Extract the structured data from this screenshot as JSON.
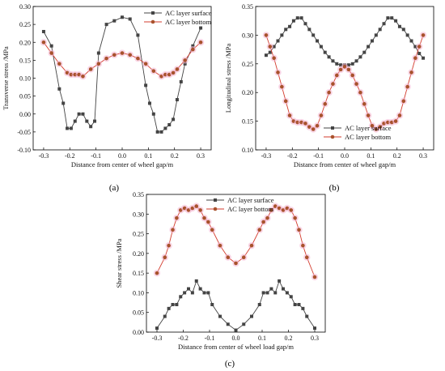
{
  "chart_data": [
    {
      "type": "line",
      "panel_label": "(a)",
      "xlabel": "Distance from center of wheel gap/m",
      "ylabel": "Transverse stress /MPa",
      "xlim": [
        -0.34,
        0.34
      ],
      "ylim": [
        -0.1,
        0.3
      ],
      "xticks": [
        -0.3,
        -0.2,
        -0.1,
        0.0,
        0.1,
        0.2,
        0.3
      ],
      "xtick_labels": [
        "-0.3",
        "-0.2",
        "-0.1",
        "0.0",
        "0.1",
        "0.2",
        "0.3"
      ],
      "yticks": [
        -0.1,
        -0.05,
        0.0,
        0.05,
        0.1,
        0.15,
        0.2,
        0.25,
        0.3
      ],
      "ytick_labels": [
        "-0.10",
        "-0.05",
        "0.00",
        "0.05",
        "0.10",
        "0.15",
        "0.20",
        "0.25",
        "0.30"
      ],
      "legend_position": "top-right",
      "series": [
        {
          "name": "AC layer surface",
          "color": "#444444",
          "marker": "square",
          "x": [
            -0.3,
            -0.27,
            -0.24,
            -0.225,
            -0.21,
            -0.195,
            -0.18,
            -0.165,
            -0.15,
            -0.135,
            -0.12,
            -0.105,
            -0.09,
            -0.06,
            -0.03,
            0.0,
            0.03,
            0.06,
            0.09,
            0.105,
            0.12,
            0.135,
            0.15,
            0.165,
            0.18,
            0.195,
            0.21,
            0.225,
            0.24,
            0.27,
            0.3
          ],
          "y": [
            0.23,
            0.19,
            0.07,
            0.03,
            -0.04,
            -0.04,
            -0.02,
            0.0,
            0.0,
            -0.02,
            -0.035,
            -0.02,
            0.17,
            0.25,
            0.26,
            0.27,
            0.265,
            0.22,
            0.08,
            0.03,
            0.0,
            -0.05,
            -0.05,
            -0.04,
            -0.03,
            -0.015,
            0.04,
            0.09,
            0.14,
            0.19,
            0.24
          ]
        },
        {
          "name": "AC layer bottom",
          "color": "#d33b2c",
          "marker": "circle",
          "x": [
            -0.3,
            -0.27,
            -0.24,
            -0.21,
            -0.195,
            -0.18,
            -0.165,
            -0.15,
            -0.12,
            -0.09,
            -0.06,
            -0.03,
            0.0,
            0.03,
            0.06,
            0.09,
            0.12,
            0.15,
            0.165,
            0.18,
            0.195,
            0.21,
            0.24,
            0.27,
            0.3
          ],
          "y": [
            0.2,
            0.17,
            0.14,
            0.115,
            0.11,
            0.11,
            0.11,
            0.105,
            0.125,
            0.14,
            0.155,
            0.165,
            0.17,
            0.165,
            0.155,
            0.14,
            0.12,
            0.105,
            0.11,
            0.11,
            0.115,
            0.125,
            0.15,
            0.18,
            0.2
          ]
        }
      ]
    },
    {
      "type": "line",
      "panel_label": "(b)",
      "xlabel": "Distance from center of wheel gap/m",
      "ylabel": "Longitudinal stress /MPa",
      "xlim": [
        -0.34,
        0.34
      ],
      "ylim": [
        0.1,
        0.35
      ],
      "xticks": [
        -0.3,
        -0.2,
        -0.1,
        0.0,
        0.1,
        0.2,
        0.3
      ],
      "xtick_labels": [
        "-0.3",
        "-0.2",
        "-0.1",
        "0.0",
        "0.1",
        "0.2",
        "0.3"
      ],
      "yticks": [
        0.1,
        0.15,
        0.2,
        0.25,
        0.3,
        0.35
      ],
      "ytick_labels": [
        "0.10",
        "0.15",
        "0.20",
        "0.25",
        "0.30",
        "0.35"
      ],
      "legend_position": "bottom-center",
      "series": [
        {
          "name": "AC layer surface",
          "color": "#444444",
          "marker": "square",
          "x": [
            -0.3,
            -0.285,
            -0.27,
            -0.255,
            -0.24,
            -0.225,
            -0.21,
            -0.195,
            -0.18,
            -0.165,
            -0.15,
            -0.135,
            -0.12,
            -0.105,
            -0.09,
            -0.075,
            -0.06,
            -0.045,
            -0.03,
            -0.015,
            0.0,
            0.015,
            0.03,
            0.045,
            0.06,
            0.075,
            0.09,
            0.105,
            0.12,
            0.135,
            0.15,
            0.165,
            0.18,
            0.195,
            0.21,
            0.225,
            0.24,
            0.255,
            0.27,
            0.285,
            0.3
          ],
          "y": [
            0.265,
            0.27,
            0.28,
            0.29,
            0.3,
            0.31,
            0.315,
            0.325,
            0.33,
            0.33,
            0.32,
            0.31,
            0.3,
            0.29,
            0.28,
            0.27,
            0.262,
            0.255,
            0.25,
            0.248,
            0.248,
            0.248,
            0.25,
            0.255,
            0.262,
            0.27,
            0.28,
            0.29,
            0.3,
            0.31,
            0.32,
            0.33,
            0.33,
            0.325,
            0.315,
            0.31,
            0.3,
            0.29,
            0.28,
            0.268,
            0.26
          ]
        },
        {
          "name": "AC layer bottom",
          "color": "#d33b2c",
          "marker": "circle",
          "x": [
            -0.3,
            -0.285,
            -0.27,
            -0.255,
            -0.24,
            -0.225,
            -0.21,
            -0.195,
            -0.18,
            -0.165,
            -0.15,
            -0.135,
            -0.12,
            -0.105,
            -0.09,
            -0.075,
            -0.06,
            -0.045,
            -0.03,
            -0.015,
            0.0,
            0.015,
            0.03,
            0.045,
            0.06,
            0.075,
            0.09,
            0.105,
            0.12,
            0.135,
            0.15,
            0.165,
            0.18,
            0.195,
            0.21,
            0.225,
            0.24,
            0.255,
            0.27,
            0.285,
            0.3
          ],
          "y": [
            0.3,
            0.28,
            0.26,
            0.235,
            0.21,
            0.185,
            0.16,
            0.15,
            0.148,
            0.148,
            0.146,
            0.14,
            0.136,
            0.142,
            0.16,
            0.18,
            0.2,
            0.215,
            0.23,
            0.24,
            0.245,
            0.24,
            0.23,
            0.215,
            0.2,
            0.18,
            0.16,
            0.142,
            0.136,
            0.14,
            0.146,
            0.148,
            0.148,
            0.15,
            0.16,
            0.185,
            0.21,
            0.235,
            0.26,
            0.28,
            0.3
          ]
        }
      ]
    },
    {
      "type": "line",
      "panel_label": "(c)",
      "xlabel": "Distance from center of wheel load gap/m",
      "ylabel": "Shear stress /MPa",
      "xlim": [
        -0.34,
        0.34
      ],
      "ylim": [
        0.0,
        0.35
      ],
      "xticks": [
        -0.3,
        -0.2,
        -0.1,
        0.0,
        0.1,
        0.2,
        0.3
      ],
      "xtick_labels": [
        "-0.3",
        "-0.2",
        "-0.1",
        "0.0",
        "0.1",
        "0.2",
        "0.3"
      ],
      "yticks": [
        0.0,
        0.05,
        0.1,
        0.15,
        0.2,
        0.25,
        0.3,
        0.35
      ],
      "ytick_labels": [
        "0.00",
        "0.05",
        "0.10",
        "0.15",
        "0.20",
        "0.25",
        "0.30",
        "0.35"
      ],
      "legend_position": "top-center",
      "series": [
        {
          "name": "AC layer surface",
          "color": "#444444",
          "marker": "square",
          "x": [
            -0.3,
            -0.27,
            -0.255,
            -0.24,
            -0.225,
            -0.21,
            -0.195,
            -0.18,
            -0.165,
            -0.15,
            -0.135,
            -0.12,
            -0.105,
            -0.09,
            -0.06,
            -0.03,
            0.0,
            0.03,
            0.06,
            0.09,
            0.105,
            0.12,
            0.135,
            0.15,
            0.165,
            0.18,
            0.195,
            0.21,
            0.225,
            0.24,
            0.255,
            0.27,
            0.3
          ],
          "y": [
            0.01,
            0.04,
            0.06,
            0.07,
            0.07,
            0.09,
            0.1,
            0.11,
            0.1,
            0.13,
            0.11,
            0.1,
            0.1,
            0.07,
            0.04,
            0.02,
            0.005,
            0.02,
            0.04,
            0.07,
            0.1,
            0.1,
            0.11,
            0.1,
            0.13,
            0.11,
            0.1,
            0.09,
            0.07,
            0.07,
            0.06,
            0.04,
            0.01
          ]
        },
        {
          "name": "AC layer bottom",
          "color": "#d33b2c",
          "marker": "circle",
          "x": [
            -0.3,
            -0.27,
            -0.255,
            -0.24,
            -0.225,
            -0.21,
            -0.195,
            -0.18,
            -0.165,
            -0.15,
            -0.135,
            -0.12,
            -0.105,
            -0.09,
            -0.06,
            -0.03,
            0.0,
            0.03,
            0.06,
            0.09,
            0.105,
            0.12,
            0.135,
            0.15,
            0.165,
            0.18,
            0.195,
            0.21,
            0.225,
            0.24,
            0.255,
            0.27,
            0.3
          ],
          "y": [
            0.15,
            0.19,
            0.22,
            0.26,
            0.29,
            0.31,
            0.315,
            0.31,
            0.315,
            0.32,
            0.31,
            0.29,
            0.28,
            0.26,
            0.22,
            0.19,
            0.175,
            0.19,
            0.22,
            0.26,
            0.28,
            0.29,
            0.31,
            0.32,
            0.315,
            0.31,
            0.315,
            0.31,
            0.29,
            0.26,
            0.22,
            0.19,
            0.14
          ]
        }
      ]
    }
  ]
}
